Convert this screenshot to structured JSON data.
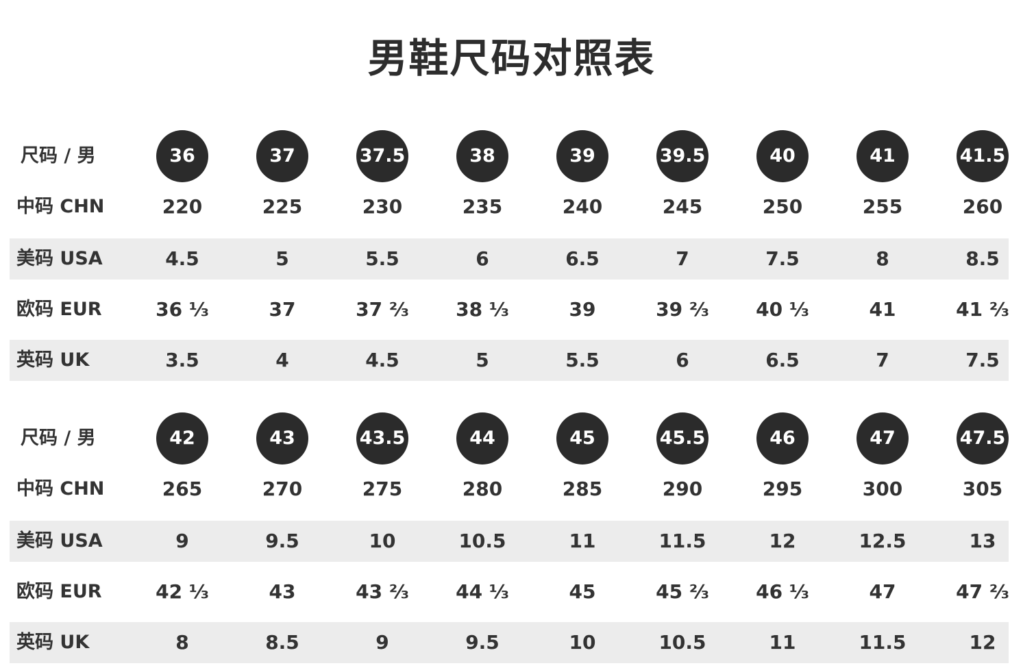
{
  "title": "男鞋尺码对照表",
  "tables": [
    {
      "size_label": "尺码 / 男",
      "sizes": [
        "36",
        "37",
        "37.5",
        "38",
        "39",
        "39.5",
        "40",
        "41",
        "41.5"
      ],
      "rows": [
        {
          "label": "中码 CHN",
          "values": [
            "220",
            "225",
            "230",
            "235",
            "240",
            "245",
            "250",
            "255",
            "260"
          ]
        },
        {
          "label": "美码 USA",
          "values": [
            "4.5",
            "5",
            "5.5",
            "6",
            "6.5",
            "7",
            "7.5",
            "8",
            "8.5"
          ]
        },
        {
          "label": "欧码 EUR",
          "values": [
            "36 ⅓",
            "37",
            "37 ⅔",
            "38 ⅓",
            "39",
            "39 ⅔",
            "40 ⅓",
            "41",
            "41 ⅔"
          ]
        },
        {
          "label": "英码 UK",
          "values": [
            "3.5",
            "4",
            "4.5",
            "5",
            "5.5",
            "6",
            "6.5",
            "7",
            "7.5"
          ]
        }
      ]
    },
    {
      "size_label": "尺码 / 男",
      "sizes": [
        "42",
        "43",
        "43.5",
        "44",
        "45",
        "45.5",
        "46",
        "47",
        "47.5"
      ],
      "rows": [
        {
          "label": "中码 CHN",
          "values": [
            "265",
            "270",
            "275",
            "280",
            "285",
            "290",
            "295",
            "300",
            "305"
          ]
        },
        {
          "label": "美码 USA",
          "values": [
            "9",
            "9.5",
            "10",
            "10.5",
            "11",
            "11.5",
            "12",
            "12.5",
            "13"
          ]
        },
        {
          "label": "欧码 EUR",
          "values": [
            "42 ⅓",
            "43",
            "43 ⅔",
            "44 ⅓",
            "45",
            "45 ⅔",
            "46 ⅓",
            "47",
            "47 ⅔"
          ]
        },
        {
          "label": "英码 UK",
          "values": [
            "8",
            "8.5",
            "9",
            "9.5",
            "10",
            "10.5",
            "11",
            "11.5",
            "12"
          ]
        }
      ]
    }
  ],
  "colors": {
    "circle": "#2b2b2b",
    "shade": "#ececec",
    "text": "#333333"
  }
}
